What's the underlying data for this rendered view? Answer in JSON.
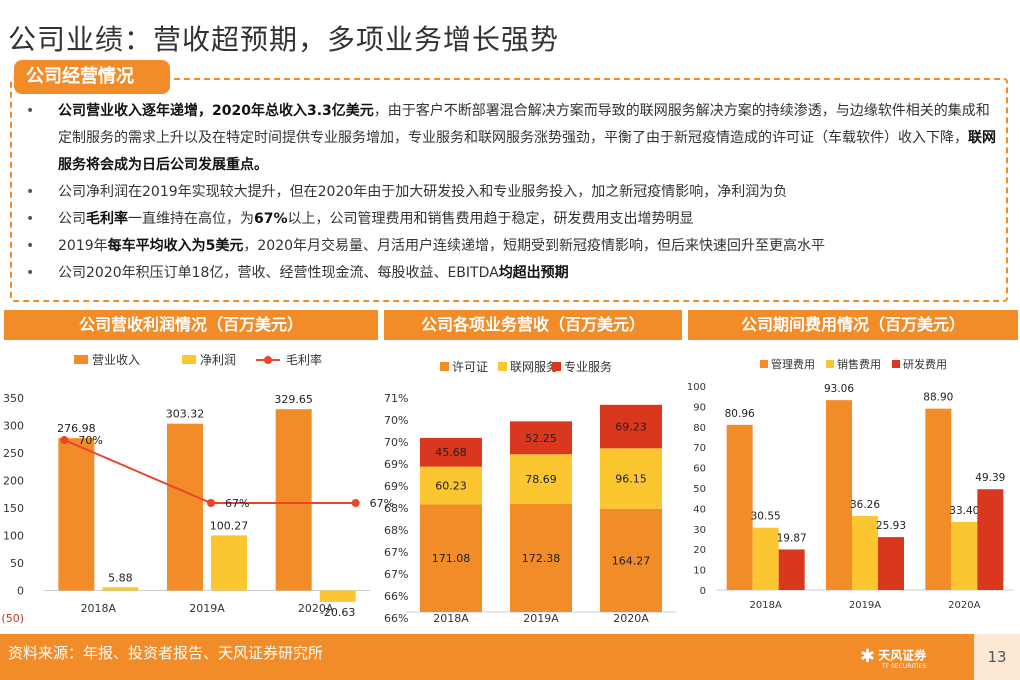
{
  "title": "公司业绩：营收超预期，多项业务增长强势",
  "section_tab": "公司经营情况",
  "bullets": [
    [
      {
        "t": "公司营业收入逐年递增，2020年总收入3.3亿美元",
        "b": true
      },
      {
        "t": "，由于客户不断部署混合解决方案而导致的联网服务解决方案的持续渗透，与边缘软件相关的集成和定制服务的需求上升以及在特定时间提供专业服务增加，专业服务和联网服务涨势强劲，平衡了由于新冠疫情造成的许可证（车载软件）收入下降，",
        "b": false
      },
      {
        "t": "联网服务将会成为日后公司发展重点。",
        "b": true
      }
    ],
    [
      {
        "t": "公司净利润在2019年实现较大提升，但在2020年由于加大研发投入和专业服务投入，加之新冠疫情影响，净利润为负",
        "b": false
      }
    ],
    [
      {
        "t": "公司",
        "b": false
      },
      {
        "t": "毛利率",
        "b": true
      },
      {
        "t": "一直维持在高位，为",
        "b": false
      },
      {
        "t": "67%",
        "b": true
      },
      {
        "t": "以上，公司管理费用和销售费用趋于稳定，研发费用支出增势明显",
        "b": false
      }
    ],
    [
      {
        "t": "2019年",
        "b": false
      },
      {
        "t": "每车平均收入为5美元",
        "b": true
      },
      {
        "t": "，2020年月交易量、月活用户连续递增，短期受到新冠疫情影响，但后来快速回升至更高水平",
        "b": false
      }
    ],
    [
      {
        "t": "公司2020年积压订单18亿，营收、经营性现金流、每股收益、EBITDA",
        "b": false
      },
      {
        "t": "均超出预期",
        "b": true
      }
    ]
  ],
  "colors": {
    "orange": "#f28c28",
    "yellow": "#fcc630",
    "red": "#d9381e",
    "line": "#e8452b"
  },
  "chart_data": [
    {
      "type": "bar",
      "title": "公司营收利润情况（百万美元）",
      "categories": [
        "2018A",
        "2019A",
        "2020A"
      ],
      "series": [
        {
          "name": "营业收入",
          "values": [
            276.98,
            303.32,
            329.65
          ],
          "labels": [
            "276.98",
            "303.32",
            "329.65"
          ]
        },
        {
          "name": "净利润",
          "values": [
            5.88,
            100.27,
            -20.63
          ],
          "labels": [
            "5.88",
            "100.27",
            "-20.63"
          ]
        }
      ],
      "line_series": {
        "name": "毛利率",
        "values": [
          70,
          67,
          67
        ],
        "labels": [
          "70%",
          "67%",
          "67%"
        ],
        "ylim": [
          62,
          72
        ]
      },
      "ylim": [
        -50,
        350
      ],
      "yticks": [
        "(50)",
        "0",
        "50",
        "100",
        "150",
        "200",
        "250",
        "300",
        "350"
      ]
    },
    {
      "type": "bar",
      "stacked": true,
      "title": "公司各项业务营收（百万美元）",
      "categories": [
        "2018A",
        "2019A",
        "2020A"
      ],
      "series": [
        {
          "name": "许可证",
          "values": [
            171.08,
            172.38,
            164.27
          ],
          "labels": [
            "171.08",
            "172.38",
            "164.27"
          ]
        },
        {
          "name": "联网服务",
          "values": [
            60.23,
            78.69,
            96.15
          ],
          "labels": [
            "60.23",
            "78.69",
            "96.15"
          ]
        },
        {
          "name": "专业服务",
          "values": [
            45.68,
            52.25,
            69.23
          ],
          "labels": [
            "45.68",
            "52.25",
            "69.23"
          ]
        }
      ],
      "ylim": [
        0,
        350
      ],
      "yticks": [
        "66%",
        "66%",
        "67%",
        "67%",
        "68%",
        "68%",
        "69%",
        "69%",
        "70%",
        "70%",
        "71%"
      ]
    },
    {
      "type": "bar",
      "title": "公司期间费用情况（百万美元）",
      "categories": [
        "2018A",
        "2019A",
        "2020A"
      ],
      "series": [
        {
          "name": "管理费用",
          "values": [
            80.96,
            93.06,
            88.9
          ],
          "labels": [
            "80.96",
            "93.06",
            "88.90"
          ]
        },
        {
          "name": "销售费用",
          "values": [
            30.55,
            36.26,
            33.4
          ],
          "labels": [
            "30.55",
            "36.26",
            "33.40"
          ]
        },
        {
          "name": "研发费用",
          "values": [
            19.87,
            25.93,
            49.39
          ],
          "labels": [
            "19.87",
            "25.93",
            "49.39"
          ]
        }
      ],
      "ylim": [
        0,
        100
      ],
      "yticks": [
        "0",
        "10",
        "20",
        "30",
        "40",
        "50",
        "60",
        "70",
        "80",
        "90",
        "100"
      ]
    }
  ],
  "footer": {
    "source": "资料来源：年报、投资者报告、天风证券研究所",
    "page": "13",
    "logo_text": "天风证券",
    "logo_sub": "TF SECURITIES"
  }
}
